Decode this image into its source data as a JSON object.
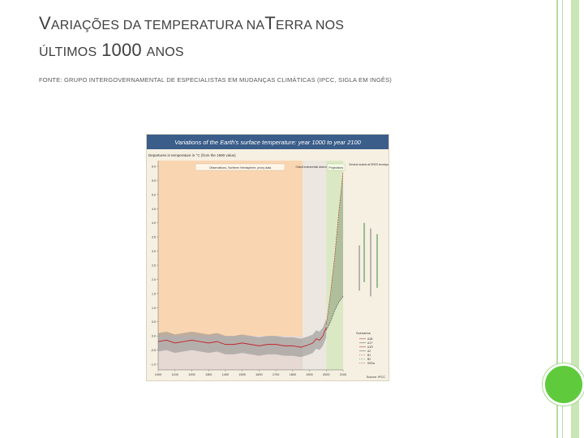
{
  "slide": {
    "title_line1_part1_cap": "V",
    "title_line1_part1_rest": "ARIAÇÕES DA TEMPERATURA NA",
    "title_line1_part2_cap": "T",
    "title_line1_part2_rest": "ERRA NOS",
    "title_line2_part1": "ÚLTIMOS",
    "title_line2_part2": "1000",
    "title_line2_part3": "ANOS",
    "source_text": "FONTE: GRUPO INTERGOVERNAMENTAL DE ESPECIALISTAS EM MUDANÇAS CLIMÁTICAS (IPCC, SIGLA EM INGÊS)",
    "accent_color": "#5fcb3c",
    "line_color": "#b7dba0"
  },
  "chart_data": {
    "type": "line",
    "title": "Variations of the Earth's surface temperature: year 1000 to year 2100",
    "ylabel": "Departures in temperature in °C (from the 1990 value)",
    "band_labels": [
      "Observations, Northern Hemisphere, proxy data",
      "Global instrumental observations",
      "Projections"
    ],
    "side_label": "Several models all SRES envelope",
    "x_ticks": [
      "1000",
      "1100",
      "1200",
      "1300",
      "1400",
      "1500",
      "1600",
      "1700",
      "1800",
      "1900",
      "2000",
      "2100"
    ],
    "y_ticks": [
      "6.0",
      "5.5",
      "5.0",
      "4.5",
      "4.0",
      "3.5",
      "3.0",
      "2.5",
      "2.0",
      "1.5",
      "1.0",
      "0.5",
      "0.0",
      "-0.5",
      "-1.0"
    ],
    "ylim": [
      -1.2,
      6.2
    ],
    "x_range": [
      1000,
      2100
    ],
    "observed": {
      "x": [
        1000,
        1050,
        1100,
        1150,
        1200,
        1250,
        1300,
        1350,
        1400,
        1450,
        1500,
        1550,
        1600,
        1650,
        1700,
        1750,
        1800,
        1850,
        1900,
        1920,
        1940,
        1960,
        1980,
        2000
      ],
      "y": [
        -0.2,
        -0.15,
        -0.25,
        -0.2,
        -0.15,
        -0.2,
        -0.25,
        -0.2,
        -0.3,
        -0.3,
        -0.25,
        -0.3,
        -0.35,
        -0.3,
        -0.3,
        -0.35,
        -0.35,
        -0.4,
        -0.3,
        -0.25,
        -0.1,
        -0.15,
        0.0,
        0.3
      ]
    },
    "projection_upper": {
      "x": [
        2000,
        2025,
        2050,
        2075,
        2100
      ],
      "y": [
        0.4,
        1.5,
        2.8,
        4.4,
        5.8
      ]
    },
    "projection_lower": {
      "x": [
        2000,
        2025,
        2050,
        2075,
        2100
      ],
      "y": [
        0.2,
        0.5,
        0.9,
        1.2,
        1.4
      ]
    },
    "legend_title": "Scenarios",
    "legend": [
      "A1B",
      "A1T",
      "A1FI",
      "A2",
      "B1",
      "B2",
      "IS92a"
    ],
    "source_note": "Source: IPCC"
  }
}
